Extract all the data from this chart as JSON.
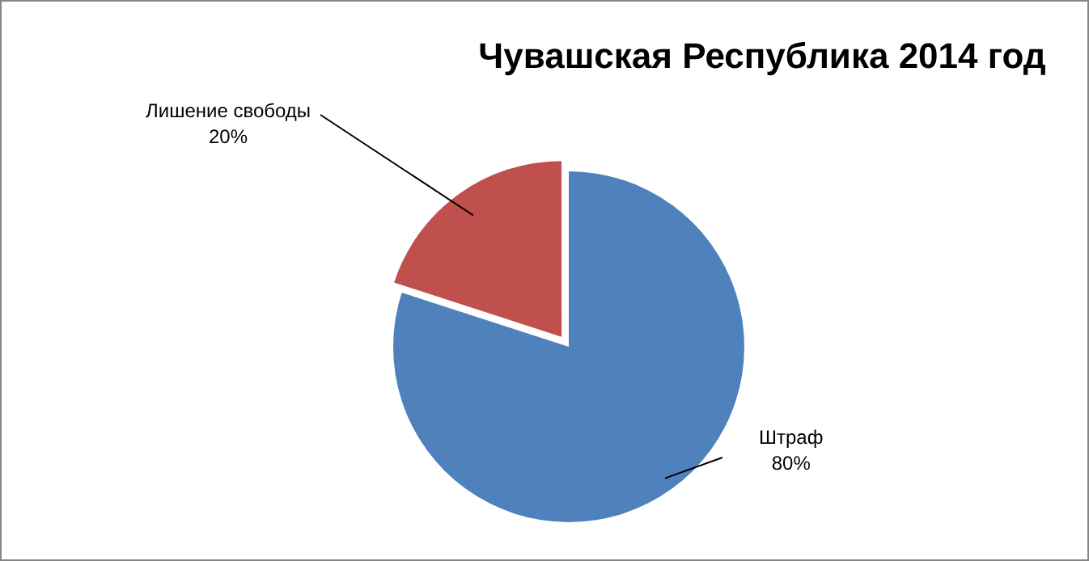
{
  "chart_data": {
    "type": "pie",
    "title": "Чувашская Республика 2014 год",
    "categories": [
      "Штраф",
      "Лишение свободы"
    ],
    "values": [
      80,
      20
    ],
    "colors": [
      "#4f81bd",
      "#c0504d"
    ],
    "value_labels": [
      "80%",
      "20%"
    ],
    "legend": false
  }
}
